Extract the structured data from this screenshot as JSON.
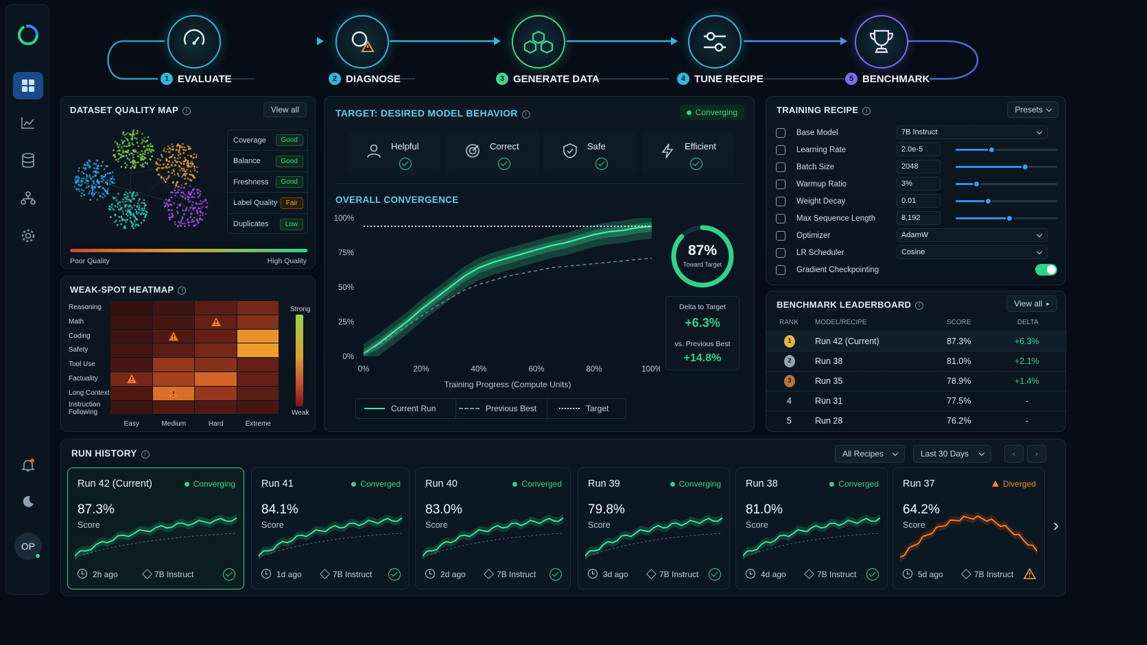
{
  "pipeline": {
    "stages": [
      {
        "num": "1",
        "label": "EVALUATE",
        "icon": "gauge-icon",
        "color": "#2fb8d8"
      },
      {
        "num": "2",
        "label": "DIAGNOSE",
        "icon": "diagnose-icon",
        "color": "#2fb8d8"
      },
      {
        "num": "3",
        "label": "GENERATE DATA",
        "icon": "cubes-icon",
        "color": "#3ed68c"
      },
      {
        "num": "4",
        "label": "TUNE RECIPE",
        "icon": "sliders-icon",
        "color": "#2fb8d8"
      },
      {
        "num": "5",
        "label": "BENCHMARK",
        "icon": "trophy-icon",
        "color": "#7a6cf0"
      }
    ]
  },
  "sidebar": {
    "items": [
      "dashboard-icon",
      "chart-icon",
      "database-icon",
      "hierarchy-icon",
      "gear-icon"
    ],
    "bottom": [
      "bell-icon",
      "moon-icon"
    ],
    "avatar": "OP"
  },
  "quality_map": {
    "title": "DATASET QUALITY MAP",
    "view_all": "View all",
    "rows": [
      {
        "label": "Coverage",
        "value": "Good",
        "kind": "good"
      },
      {
        "label": "Balance",
        "value": "Good",
        "kind": "good"
      },
      {
        "label": "Freshness",
        "value": "Good",
        "kind": "good"
      },
      {
        "label": "Label Quality",
        "value": "Fair",
        "kind": "fair"
      },
      {
        "label": "Duplicates",
        "value": "Low",
        "kind": "low"
      }
    ],
    "poor": "Poor Quality",
    "high": "High Quality"
  },
  "heatmap": {
    "title": "WEAK-SPOT HEATMAP",
    "rows": [
      "Reasoning",
      "Math",
      "Coding",
      "Safety",
      "Tool Use",
      "Factuality",
      "Long Context",
      "Instruction Following"
    ],
    "cols": [
      "Easy",
      "Medium",
      "Hard",
      "Extreme"
    ],
    "strong": "Strong",
    "weak": "Weak",
    "values": [
      [
        0.05,
        0.1,
        0.25,
        0.35
      ],
      [
        0.1,
        0.15,
        0.3,
        0.4
      ],
      [
        0.1,
        0.2,
        0.3,
        0.9
      ],
      [
        0.15,
        0.25,
        0.35,
        0.95
      ],
      [
        0.15,
        0.45,
        0.4,
        0.3
      ],
      [
        0.35,
        0.5,
        0.7,
        0.3
      ],
      [
        0.2,
        0.75,
        0.45,
        0.25
      ],
      [
        0.1,
        0.2,
        0.2,
        0.15
      ]
    ],
    "warnings": [
      [
        1,
        2
      ],
      [
        2,
        1
      ],
      [
        5,
        0
      ],
      [
        6,
        1
      ]
    ]
  },
  "target": {
    "title": "TARGET: DESIRED MODEL BEHAVIOR",
    "status": "Converging",
    "behaviors": [
      {
        "label": "Helpful",
        "icon": "person-icon"
      },
      {
        "label": "Correct",
        "icon": "target-icon"
      },
      {
        "label": "Safe",
        "icon": "shield-icon"
      },
      {
        "label": "Efficient",
        "icon": "bolt-icon"
      }
    ]
  },
  "convergence": {
    "title": "OVERALL CONVERGENCE",
    "gauge_value": "87%",
    "gauge_label": "Toward Target",
    "gauge_fraction": 0.87,
    "delta_label": "Delta to Target",
    "delta_value": "+6.3%",
    "prev_label": "vs. Previous Best",
    "prev_value": "+14.8%"
  },
  "chart_data": {
    "type": "line",
    "xlabel": "Training Progress (Compute Units)",
    "ylabel": "",
    "x_ticks": [
      "0%",
      "20%",
      "40%",
      "60%",
      "80%",
      "100%"
    ],
    "y_ticks": [
      "0%",
      "25%",
      "50%",
      "75%",
      "100%"
    ],
    "xlim": [
      0,
      100
    ],
    "ylim": [
      0,
      100
    ],
    "x": [
      0,
      5,
      10,
      15,
      20,
      25,
      30,
      35,
      40,
      45,
      50,
      55,
      60,
      65,
      70,
      75,
      80,
      85,
      90,
      95,
      100
    ],
    "series": [
      {
        "name": "Current Run",
        "style": "solid",
        "values": [
          2,
          9,
          17,
          25,
          34,
          42,
          50,
          58,
          64,
          68,
          71,
          74,
          77,
          80,
          82,
          85,
          88,
          90,
          91,
          93,
          94
        ]
      },
      {
        "name": "Previous Best",
        "style": "dashed",
        "values": [
          2,
          8,
          15,
          22,
          29,
          36,
          42,
          48,
          52,
          55,
          58,
          60,
          62,
          64,
          65,
          66,
          67,
          68,
          69,
          70,
          71
        ]
      },
      {
        "name": "Target",
        "style": "dotted",
        "values": [
          94,
          94,
          94,
          94,
          94,
          94,
          94,
          94,
          94,
          94,
          94,
          94,
          94,
          94,
          94,
          94,
          94,
          94,
          94,
          94,
          94
        ]
      }
    ],
    "legend": [
      "Current Run",
      "Previous Best",
      "Target"
    ],
    "legend_position": "bottom"
  },
  "recipe": {
    "title": "TRAINING RECIPE",
    "presets": "Presets",
    "rows": [
      {
        "label": "Base Model",
        "value": "7B Instruct",
        "type": "select"
      },
      {
        "label": "Learning Rate",
        "value": "2.0e-5",
        "type": "slider",
        "fraction": 0.35
      },
      {
        "label": "Batch Size",
        "value": "2048",
        "type": "slider",
        "fraction": 0.68
      },
      {
        "label": "Warmup Ratio",
        "value": "3%",
        "type": "slider",
        "fraction": 0.2
      },
      {
        "label": "Weight Decay",
        "value": "0.01",
        "type": "slider",
        "fraction": 0.32
      },
      {
        "label": "Max Sequence Length",
        "value": "8,192",
        "type": "slider",
        "fraction": 0.53
      },
      {
        "label": "Optimizer",
        "value": "AdamW",
        "type": "select"
      },
      {
        "label": "LR Scheduler",
        "value": "Cosine",
        "type": "select"
      },
      {
        "label": "Gradient Checkpointing",
        "value": "",
        "type": "toggle"
      }
    ]
  },
  "leaderboard": {
    "title": "BENCHMARK LEADERBOARD",
    "view_all": "View all",
    "headers": [
      "RANK",
      "MODEL/RECIPE",
      "SCORE",
      "DELTA"
    ],
    "rows": [
      {
        "rank": "1",
        "model": "Run 42 (Current)",
        "score": "87.3%",
        "delta": "+6.3%",
        "medal": "#e8b43a"
      },
      {
        "rank": "2",
        "model": "Run 38",
        "score": "81.0%",
        "delta": "+2.1%",
        "medal": "#8fa2b5"
      },
      {
        "rank": "3",
        "model": "Run 35",
        "score": "78.9%",
        "delta": "+1.4%",
        "medal": "#b5743d"
      },
      {
        "rank": "4",
        "model": "Run 31",
        "score": "77.5%",
        "delta": "-",
        "medal": ""
      },
      {
        "rank": "5",
        "model": "Run 28",
        "score": "76.2%",
        "delta": "-",
        "medal": ""
      }
    ]
  },
  "history": {
    "title": "RUN HISTORY",
    "filter1": "All Recipes",
    "filter2": "Last 30 Days",
    "cards": [
      {
        "title": "Run 42 (Current)",
        "status": "Converging",
        "score": "87.3%",
        "score_label": "Score",
        "time": "2h ago",
        "model": "7B Instruct",
        "ok": true
      },
      {
        "title": "Run 41",
        "status": "Converged",
        "score": "84.1%",
        "score_label": "Score",
        "time": "1d ago",
        "model": "7B Instruct",
        "ok": true
      },
      {
        "title": "Run 40",
        "status": "Converged",
        "score": "83.0%",
        "score_label": "Score",
        "time": "2d ago",
        "model": "7B Instruct",
        "ok": true
      },
      {
        "title": "Run 39",
        "status": "Converging",
        "score": "79.8%",
        "score_label": "Score",
        "time": "3d ago",
        "model": "7B Instruct",
        "ok": true
      },
      {
        "title": "Run 38",
        "status": "Converged",
        "score": "81.0%",
        "score_label": "Score",
        "time": "4d ago",
        "model": "7B Instruct",
        "ok": true
      },
      {
        "title": "Run 37",
        "status": "Diverged",
        "score": "64.2%",
        "score_label": "Score",
        "time": "5d ago",
        "model": "7B Instruct",
        "ok": false
      }
    ]
  },
  "colors": {
    "accent": "#2fd38a",
    "warn": "#f08a2a",
    "blue": "#2f8ff0"
  }
}
